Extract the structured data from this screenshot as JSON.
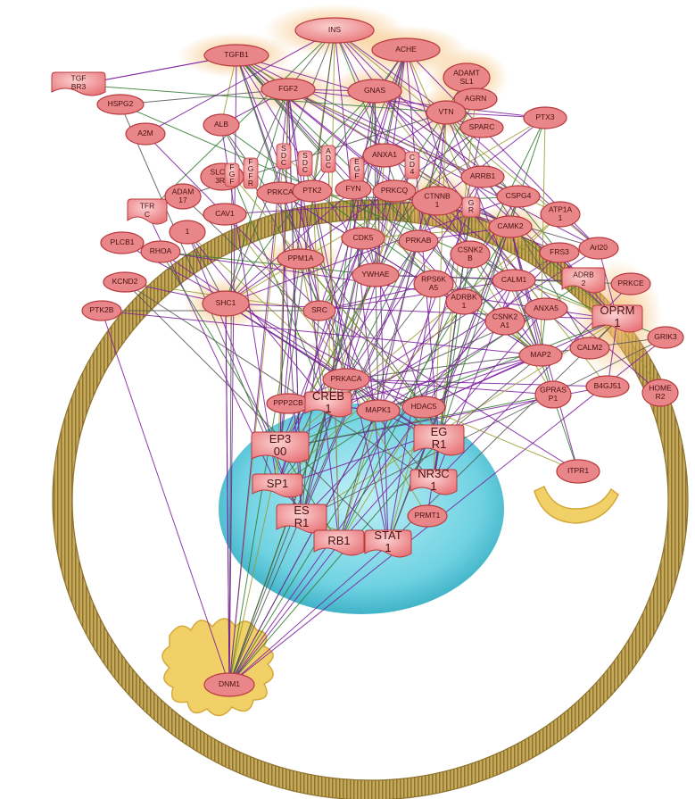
{
  "colors": {
    "membrane": "#b89a4a",
    "membrane_dark": "#8e7330",
    "nucleus": "#63cfe0",
    "node_fill": "#e8868a",
    "node_stroke": "#b83a3e",
    "halo": "#f3b35e",
    "edge_purple": "#7a1a9e",
    "edge_green": "#2f7a2f",
    "edge_olive": "#9a9a33",
    "organelle": "#f2d068",
    "label": "#4a1010"
  },
  "nodes": {
    "INS": "INS",
    "TGFB1": "TGFB1",
    "ACHE": "ACHE",
    "TGFBR3": "TGF BR3",
    "ADAMTSL1": "ADAMT SL1",
    "HSPG2": "HSPG2",
    "FGF2": "FGF2",
    "GNAS": "GNAS",
    "AGRN": "AGRN",
    "VTN": "VTN",
    "PTX3": "PTX3",
    "A2M": "A2M",
    "ALB": "ALB",
    "SPARC": "SPARC",
    "ANXA1": "ANXA1",
    "SLC6A3": "SLC6A 3R2",
    "ARRB1": "ARRB1",
    "ADAM17": "ADAM 17",
    "CSPG4": "CSPG4",
    "TFRC": "TFR C",
    "CAV1": "CAV1",
    "PRKCA": "PRKCA",
    "PTK2": "PTK2",
    "FYN": "FYN",
    "PRKCQ": "PRKCQ",
    "CTNNB1": "CTNNB 1",
    "ATP1A1": "ATP1A 1",
    "CAMK2": "CAMK2",
    "NA1": "1",
    "PLCB1": "PLCB1",
    "RHOA": "RHOA",
    "CDK5": "CDK5",
    "PRKAB": "PRKAB",
    "CSNK2B": "CSNK2 B",
    "FRS3": "FRS3",
    "Arl20": "Arl20",
    "PPM1A": "PPM1A",
    "YWHAE": "YWHAE",
    "RPS6KA5": "RPS6K A5",
    "CALM1": "CALM1",
    "ADRB2": "ADRB 2",
    "PRKCE": "PRKCE",
    "KCND2": "KCND2",
    "SHC1": "SHC1",
    "ADRBK1": "ADRBK 1",
    "CSNK2A1": "CSNK2 A1",
    "ANXA5": "ANXA5",
    "OPRM1": "OPRM 1",
    "PTK2B": "PTK2B",
    "SRC": "SRC",
    "GRIK3": "GRIK3",
    "CALM2": "CALM2",
    "PRKACA": "PRKACA",
    "MAP2": "MAP2",
    "PPP2CB": "PPP2CB",
    "CREB1": "CREB 1",
    "MAPK1": "MAPK1",
    "HDAC5": "HDAC5",
    "GPRASP1": "GPRAS P1",
    "B4GALT1": "B4GJ51",
    "HOMER2": "HOME R2",
    "EP300": "EP3 00",
    "EGR1": "EG R1",
    "SP1": "SP1",
    "NR3C1": "NR3C 1",
    "ITPR1": "ITPR1",
    "ESR1": "ES R1",
    "PRMT1": "PRMT1",
    "RB1": "RB1",
    "STAT1": "STAT 1",
    "DNM1": "DNM1",
    "GR": "G R",
    "SDC1": "S D C",
    "SDC2": "S D C",
    "ADC": "A D C",
    "EGF": "E G F",
    "CD4": "C D 4",
    "FGFR": "F G F R",
    "FGF": "F G F"
  }
}
